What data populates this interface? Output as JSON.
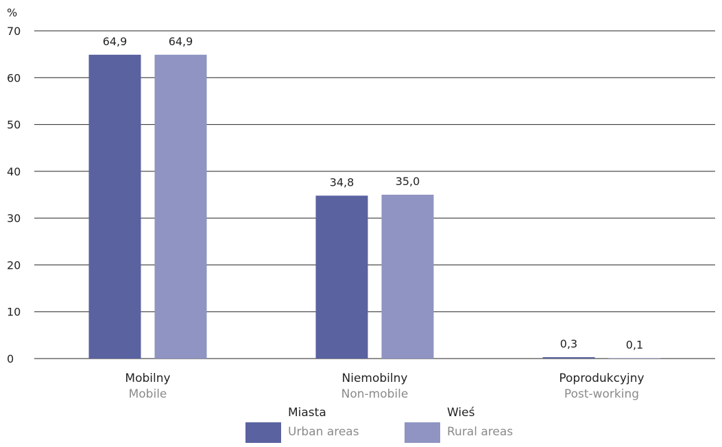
{
  "chart_data": {
    "type": "bar",
    "ylabel": "%",
    "ylim": [
      0,
      70
    ],
    "yticks": [
      0,
      10,
      20,
      30,
      40,
      50,
      60,
      70
    ],
    "grid": true,
    "categories": [
      {
        "pl": "Mobilny",
        "en": "Mobile"
      },
      {
        "pl": "Niemobilny",
        "en": "Non-mobile"
      },
      {
        "pl": "Poprodukcyjny",
        "en": "Post-working"
      }
    ],
    "series": [
      {
        "name_pl": "Miasta",
        "name_en": "Urban areas",
        "color": "#5a62a0",
        "values": [
          64.9,
          34.8,
          0.3
        ],
        "labels": [
          "64,9",
          "34,8",
          "0,3"
        ]
      },
      {
        "name_pl": "Wieś",
        "name_en": "Rural areas",
        "color": "#8f94c2",
        "values": [
          64.9,
          35.0,
          0.1
        ],
        "labels": [
          "64,9",
          "35,0",
          "0,1"
        ]
      }
    ],
    "legend_position": "bottom-center"
  }
}
